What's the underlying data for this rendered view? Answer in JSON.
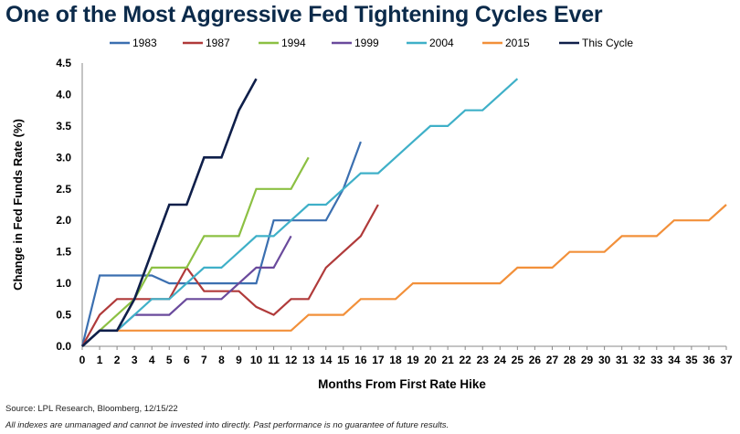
{
  "title": "One of the Most Aggressive Fed Tightening Cycles Ever",
  "source": "Source: LPL Research, Bloomberg, 12/15/22",
  "disclaimer": "All indexes are unmanaged and cannot be invested into directly. Past performance is no guarantee of future results.",
  "chart_data": {
    "type": "line",
    "title": "One of the Most Aggressive Fed Tightening Cycles Ever",
    "xlabel": "Months From First Rate Hike",
    "ylabel": "Change in Fed Funds Rate (%)",
    "xlim": [
      0,
      37
    ],
    "ylim": [
      0,
      4.5
    ],
    "x_ticks": [
      "0",
      "1",
      "2",
      "3",
      "4",
      "5",
      "6",
      "7",
      "8",
      "9",
      "10",
      "11",
      "12",
      "13",
      "14",
      "15",
      "16",
      "17",
      "18",
      "19",
      "20",
      "21",
      "22",
      "23",
      "24",
      "25",
      "26",
      "27",
      "28",
      "29",
      "30",
      "31",
      "32",
      "33",
      "34",
      "35",
      "36",
      "37"
    ],
    "y_ticks": [
      "0.0",
      "0.5",
      "1.0",
      "1.5",
      "2.0",
      "2.5",
      "3.0",
      "3.5",
      "4.0",
      "4.5"
    ],
    "grid": false,
    "legend_position": "top",
    "series": [
      {
        "name": "1983",
        "color": "#3b6fb0",
        "x": [
          0,
          1,
          2,
          3,
          4,
          5,
          6,
          7,
          8,
          9,
          10,
          11,
          12,
          13,
          14,
          15,
          16
        ],
        "y": [
          0,
          1.125,
          1.125,
          1.125,
          1.125,
          1.0,
          1.0,
          1.0,
          1.0,
          1.0,
          1.0,
          2.0,
          2.0,
          2.0,
          2.0,
          2.5,
          3.25
        ]
      },
      {
        "name": "1987",
        "color": "#b03a3a",
        "x": [
          0,
          1,
          2,
          3,
          4,
          5,
          6,
          7,
          8,
          9,
          10,
          11,
          12,
          13,
          14,
          15,
          16,
          17
        ],
        "y": [
          0,
          0.5,
          0.75,
          0.75,
          0.75,
          0.75,
          1.25,
          0.875,
          0.875,
          0.875,
          0.625,
          0.5,
          0.75,
          0.75,
          1.25,
          1.5,
          1.75,
          2.25
        ]
      },
      {
        "name": "1994",
        "color": "#8cc043",
        "x": [
          0,
          1,
          2,
          3,
          4,
          5,
          6,
          7,
          8,
          9,
          10,
          11,
          12,
          13
        ],
        "y": [
          0,
          0.25,
          0.5,
          0.75,
          1.25,
          1.25,
          1.25,
          1.75,
          1.75,
          1.75,
          2.5,
          2.5,
          2.5,
          3.0
        ]
      },
      {
        "name": "1999",
        "color": "#6a4a9c",
        "x": [
          0,
          1,
          2,
          3,
          4,
          5,
          6,
          7,
          8,
          9,
          10,
          11,
          12
        ],
        "y": [
          0,
          0.25,
          0.25,
          0.5,
          0.5,
          0.5,
          0.75,
          0.75,
          0.75,
          1.0,
          1.25,
          1.25,
          1.75
        ]
      },
      {
        "name": "2004",
        "color": "#3fb0c8",
        "x": [
          0,
          1,
          2,
          3,
          4,
          5,
          6,
          7,
          8,
          9,
          10,
          11,
          12,
          13,
          14,
          15,
          16,
          17,
          18,
          19,
          20,
          21,
          22,
          23,
          24,
          25
        ],
        "y": [
          0,
          0.25,
          0.25,
          0.5,
          0.75,
          0.75,
          1.0,
          1.25,
          1.25,
          1.5,
          1.75,
          1.75,
          2.0,
          2.25,
          2.25,
          2.5,
          2.75,
          2.75,
          3.0,
          3.25,
          3.5,
          3.5,
          3.75,
          3.75,
          4.0,
          4.25
        ]
      },
      {
        "name": "2015",
        "color": "#f2903a",
        "x": [
          0,
          1,
          2,
          3,
          4,
          5,
          6,
          7,
          8,
          9,
          10,
          11,
          12,
          13,
          14,
          15,
          16,
          17,
          18,
          19,
          20,
          21,
          22,
          23,
          24,
          25,
          26,
          27,
          28,
          29,
          30,
          31,
          32,
          33,
          34,
          35,
          36,
          37
        ],
        "y": [
          0,
          0.25,
          0.25,
          0.25,
          0.25,
          0.25,
          0.25,
          0.25,
          0.25,
          0.25,
          0.25,
          0.25,
          0.25,
          0.5,
          0.5,
          0.5,
          0.75,
          0.75,
          0.75,
          1.0,
          1.0,
          1.0,
          1.0,
          1.0,
          1.0,
          1.25,
          1.25,
          1.25,
          1.5,
          1.5,
          1.5,
          1.75,
          1.75,
          1.75,
          2.0,
          2.0,
          2.0,
          2.25
        ]
      },
      {
        "name": "This Cycle",
        "color": "#0f1f4a",
        "x": [
          0,
          1,
          2,
          3,
          4,
          5,
          6,
          7,
          8,
          9,
          10
        ],
        "y": [
          0,
          0.25,
          0.25,
          0.75,
          1.5,
          2.25,
          2.25,
          3.0,
          3.0,
          3.75,
          4.25
        ]
      }
    ]
  }
}
